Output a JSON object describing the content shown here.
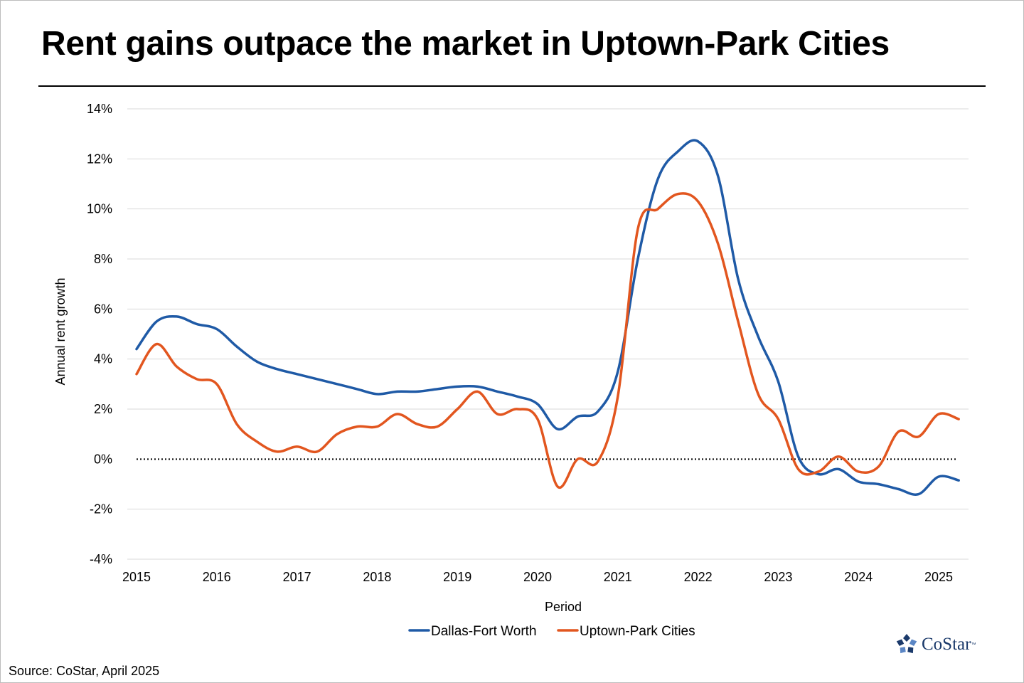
{
  "title": "Rent gains outpace the market in Uptown-Park Cities",
  "source": "Source: CoStar, April 2025",
  "brand": {
    "name": "CoStar",
    "tm": "™",
    "icon": "costar-star-logo-icon",
    "color": "#1b3a6b"
  },
  "chart_data": {
    "type": "line",
    "xlabel": "Period",
    "ylabel": "Annual rent growth",
    "x_ticks": [
      "2015",
      "2016",
      "2017",
      "2018",
      "2019",
      "2020",
      "2021",
      "2022",
      "2023",
      "2024",
      "2025"
    ],
    "y_ticks": [
      "14%",
      "12%",
      "10%",
      "8%",
      "6%",
      "4%",
      "2%",
      "0%",
      "-2%",
      "-4%"
    ],
    "xlim": [
      2015,
      2025.4
    ],
    "ylim": [
      -4,
      14
    ],
    "grid": true,
    "zero_line": "dotted",
    "legend_position": "bottom-center",
    "x": [
      2015.0,
      2015.25,
      2015.5,
      2015.75,
      2016.0,
      2016.25,
      2016.5,
      2016.75,
      2017.0,
      2017.25,
      2017.5,
      2017.75,
      2018.0,
      2018.25,
      2018.5,
      2018.75,
      2019.0,
      2019.25,
      2019.5,
      2019.75,
      2020.0,
      2020.25,
      2020.5,
      2020.75,
      2021.0,
      2021.25,
      2021.5,
      2021.75,
      2022.0,
      2022.25,
      2022.5,
      2022.75,
      2023.0,
      2023.25,
      2023.5,
      2023.75,
      2024.0,
      2024.25,
      2024.5,
      2024.75,
      2025.0,
      2025.25
    ],
    "series": [
      {
        "name": "Dallas-Fort Worth",
        "color": "#1f5aa6",
        "values": [
          4.4,
          5.5,
          5.7,
          5.4,
          5.2,
          4.5,
          3.9,
          3.6,
          3.4,
          3.2,
          3.0,
          2.8,
          2.6,
          2.7,
          2.7,
          2.8,
          2.9,
          2.9,
          2.7,
          2.5,
          2.2,
          1.2,
          1.7,
          1.9,
          3.5,
          8.0,
          11.2,
          12.3,
          12.7,
          11.3,
          7.2,
          4.9,
          3.1,
          0.1,
          -0.6,
          -0.4,
          -0.9,
          -1.0,
          -1.2,
          -1.4,
          -0.7,
          -0.85
        ]
      },
      {
        "name": "Uptown-Park Cities",
        "color": "#e2561f",
        "values": [
          3.4,
          4.6,
          3.7,
          3.2,
          3.0,
          1.4,
          0.7,
          0.3,
          0.5,
          0.3,
          1.0,
          1.3,
          1.3,
          1.8,
          1.4,
          1.3,
          2.0,
          2.7,
          1.8,
          2.0,
          1.6,
          -1.1,
          0.0,
          -0.1,
          2.5,
          9.2,
          10.0,
          10.6,
          10.3,
          8.6,
          5.5,
          2.6,
          1.6,
          -0.4,
          -0.5,
          0.1,
          -0.5,
          -0.3,
          1.1,
          0.9,
          1.8,
          1.6
        ]
      }
    ]
  }
}
